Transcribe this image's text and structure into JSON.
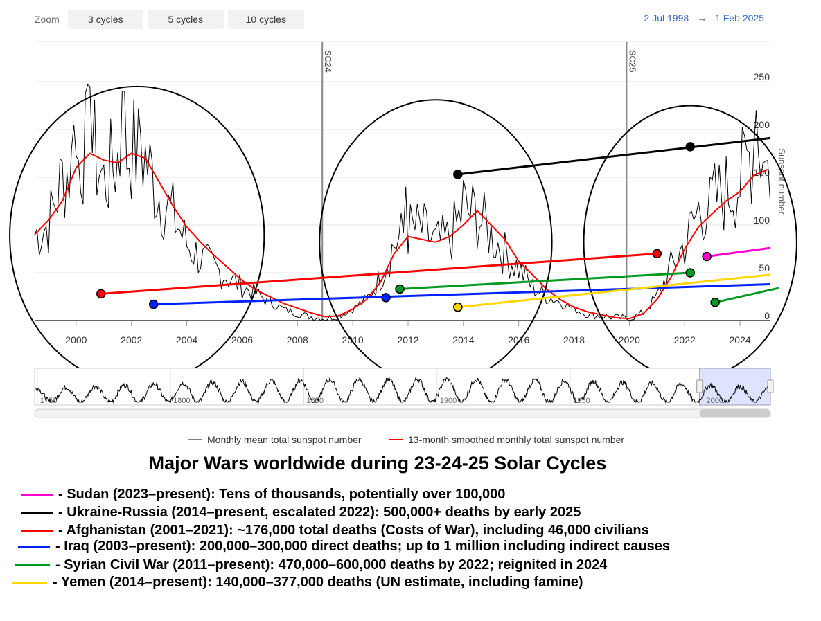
{
  "toolbar": {
    "zoom_label": "Zoom",
    "buttons": [
      "3 cycles",
      "5 cycles",
      "10 cycles"
    ],
    "range_start": "2 Jul 1998",
    "range_arrow": "→",
    "range_end": "1 Feb 2025"
  },
  "colors": {
    "monthly": "#000000",
    "smoothed": "#ff0000",
    "sudan": "#ff00cc",
    "ukraine": "#000000",
    "afghanistan": "#ff0000",
    "iraq": "#0022ff",
    "syria": "#009922",
    "yemen": "#ffd700",
    "navigator_selection": "#d6dcff",
    "range_text": "#3366cc"
  },
  "chart_data": {
    "type": "line",
    "xlim": [
      1998.5,
      2025.1
    ],
    "ylim": [
      0,
      250
    ],
    "ylabel": "Sunspot number",
    "x_ticks": [
      2000,
      2002,
      2004,
      2006,
      2008,
      2010,
      2012,
      2014,
      2016,
      2018,
      2020,
      2022,
      2024
    ],
    "y_ticks": [
      0,
      50,
      100,
      150,
      200,
      250
    ],
    "plot_lines": [
      {
        "label": "SC24",
        "x": 2008.9
      },
      {
        "label": "SC25",
        "x": 2019.9
      }
    ],
    "smoothed_series": {
      "name": "13-month smoothed monthly total sunspot number",
      "points": [
        [
          1998.5,
          90
        ],
        [
          1999.0,
          105
        ],
        [
          1999.5,
          125
        ],
        [
          2000.0,
          160
        ],
        [
          2000.5,
          175
        ],
        [
          2001.0,
          168
        ],
        [
          2001.5,
          165
        ],
        [
          2002.0,
          175
        ],
        [
          2002.5,
          170
        ],
        [
          2003.0,
          145
        ],
        [
          2003.5,
          120
        ],
        [
          2004.0,
          98
        ],
        [
          2004.5,
          82
        ],
        [
          2005.0,
          68
        ],
        [
          2005.5,
          55
        ],
        [
          2006.0,
          42
        ],
        [
          2006.5,
          32
        ],
        [
          2007.0,
          25
        ],
        [
          2007.5,
          18
        ],
        [
          2008.0,
          13
        ],
        [
          2008.5,
          8
        ],
        [
          2009.0,
          4
        ],
        [
          2009.5,
          5
        ],
        [
          2010.0,
          12
        ],
        [
          2010.5,
          22
        ],
        [
          2011.0,
          40
        ],
        [
          2011.5,
          70
        ],
        [
          2012.0,
          88
        ],
        [
          2012.5,
          85
        ],
        [
          2013.0,
          82
        ],
        [
          2013.5,
          88
        ],
        [
          2014.0,
          100
        ],
        [
          2014.5,
          115
        ],
        [
          2015.0,
          100
        ],
        [
          2015.5,
          85
        ],
        [
          2016.0,
          62
        ],
        [
          2016.5,
          48
        ],
        [
          2017.0,
          33
        ],
        [
          2017.5,
          22
        ],
        [
          2018.0,
          14
        ],
        [
          2018.5,
          9
        ],
        [
          2019.0,
          6
        ],
        [
          2019.5,
          3
        ],
        [
          2020.0,
          2
        ],
        [
          2020.5,
          7
        ],
        [
          2021.0,
          22
        ],
        [
          2021.5,
          45
        ],
        [
          2022.0,
          75
        ],
        [
          2022.5,
          98
        ],
        [
          2023.0,
          112
        ],
        [
          2023.5,
          125
        ],
        [
          2024.0,
          135
        ],
        [
          2024.5,
          152
        ],
        [
          2025.0,
          158
        ]
      ]
    },
    "monthly_series": {
      "name": "Monthly mean total sunspot number",
      "anchors": [
        [
          1998.5,
          90
        ],
        [
          1999.0,
          100
        ],
        [
          1999.5,
          150
        ],
        [
          2000.0,
          165
        ],
        [
          2000.5,
          190
        ],
        [
          2001.0,
          145
        ],
        [
          2001.5,
          170
        ],
        [
          2002.0,
          180
        ],
        [
          2002.5,
          170
        ],
        [
          2003.0,
          130
        ],
        [
          2003.5,
          110
        ],
        [
          2004.0,
          80
        ],
        [
          2004.5,
          65
        ],
        [
          2005.0,
          55
        ],
        [
          2005.5,
          45
        ],
        [
          2006.0,
          35
        ],
        [
          2006.5,
          28
        ],
        [
          2007.0,
          20
        ],
        [
          2007.5,
          12
        ],
        [
          2008.0,
          7
        ],
        [
          2008.5,
          4
        ],
        [
          2009.0,
          2
        ],
        [
          2009.5,
          5
        ],
        [
          2010.0,
          12
        ],
        [
          2010.5,
          22
        ],
        [
          2011.0,
          45
        ],
        [
          2011.5,
          80
        ],
        [
          2012.0,
          95
        ],
        [
          2012.5,
          95
        ],
        [
          2013.0,
          80
        ],
        [
          2013.5,
          85
        ],
        [
          2014.0,
          115
        ],
        [
          2014.5,
          110
        ],
        [
          2015.0,
          90
        ],
        [
          2015.5,
          70
        ],
        [
          2016.0,
          55
        ],
        [
          2016.5,
          35
        ],
        [
          2017.0,
          25
        ],
        [
          2017.5,
          20
        ],
        [
          2018.0,
          12
        ],
        [
          2018.5,
          6
        ],
        [
          2019.0,
          5
        ],
        [
          2019.5,
          3
        ],
        [
          2020.0,
          2
        ],
        [
          2020.5,
          8
        ],
        [
          2021.0,
          25
        ],
        [
          2021.5,
          55
        ],
        [
          2022.0,
          80
        ],
        [
          2022.5,
          115
        ],
        [
          2023.0,
          125
        ],
        [
          2023.5,
          135
        ],
        [
          2024.0,
          145
        ],
        [
          2024.5,
          185
        ],
        [
          2025.0,
          160
        ]
      ],
      "peaks": [
        [
          1999.9,
          205
        ],
        [
          2000.5,
          245
        ],
        [
          2001.7,
          240
        ],
        [
          2002.3,
          195
        ],
        [
          2011.9,
          140
        ],
        [
          2014.0,
          147
        ],
        [
          2022.9,
          150
        ],
        [
          2024.6,
          220
        ],
        [
          2024.85,
          165
        ]
      ]
    },
    "circles": [
      {
        "cx": 2002.2,
        "cy": 89,
        "rx": 4.6,
        "ry": 156
      },
      {
        "cx": 2013.0,
        "cy": 82,
        "rx": 4.2,
        "ry": 149
      },
      {
        "cx": 2022.2,
        "cy": 82,
        "rx": 3.85,
        "ry": 143
      }
    ],
    "war_lines": [
      {
        "name": "ukraine",
        "start": [
          2013.8,
          153
        ],
        "end": [
          2025.1,
          191
        ],
        "markers": [
          [
            2013.8,
            153
          ],
          [
            2022.2,
            182
          ]
        ]
      },
      {
        "name": "afghanistan",
        "start": [
          2000.9,
          28
        ],
        "end": [
          2021.0,
          70
        ],
        "markers": [
          [
            2000.9,
            28
          ],
          [
            2021.0,
            70
          ]
        ]
      },
      {
        "name": "iraq",
        "start": [
          2002.8,
          17
        ],
        "end": [
          2025.1,
          38
        ],
        "markers": [
          [
            2002.8,
            17
          ],
          [
            2011.2,
            24
          ]
        ]
      },
      {
        "name": "syria",
        "start": [
          2011.7,
          33
        ],
        "end": [
          2022.2,
          50
        ],
        "markers": [
          [
            2011.7,
            33
          ],
          [
            2022.2,
            50
          ]
        ]
      },
      {
        "name": "yemen",
        "start": [
          2013.8,
          14
        ],
        "end": [
          2025.1,
          48
        ],
        "markers": [
          [
            2013.8,
            14
          ]
        ]
      },
      {
        "name": "sudan",
        "start": [
          2022.8,
          67
        ],
        "end": [
          2025.1,
          76
        ],
        "markers": [
          [
            2022.8,
            67
          ]
        ]
      },
      {
        "name": "syria_reignited",
        "color_key": "syria",
        "start": [
          2023.1,
          19
        ],
        "end": [
          2025.4,
          34
        ],
        "markers": [
          [
            2023.1,
            19
          ]
        ]
      }
    ],
    "navigator": {
      "x_ticks": [
        1750,
        1800,
        1850,
        1900,
        1950,
        2000
      ],
      "xlim": [
        1749,
        2025.1
      ],
      "selected": [
        1998.5,
        2025.1
      ]
    }
  },
  "legend": {
    "monthly_label": "Monthly mean total sunspot number",
    "smoothed_label": "13-month smoothed monthly total sunspot number"
  },
  "title": "Major Wars worldwide during 23-24-25 Solar Cycles",
  "wars": [
    {
      "color": "#ff00cc",
      "text": "- Sudan (2023–present): Tens of thousands, potentially over 100,000"
    },
    {
      "color": "#000000",
      "text": "- Ukraine-Russia (2014–present, escalated 2022): 500,000+ deaths by early 2025"
    },
    {
      "color": "#ff0000",
      "text": "- Afghanistan (2001–2021): ~176,000 total deaths (Costs of War), including 46,000 civilians"
    },
    {
      "color": "#0022ff",
      "text": "- Iraq (2003–present): 200,000–300,000 direct deaths; up to 1 million including indirect causes"
    },
    {
      "color": "#009922",
      "text": "- Syrian Civil War (2011–present): 470,000–600,000 deaths by 2022; reignited in 2024"
    },
    {
      "color": "#ffd700",
      "text": "- Yemen (2014–present): 140,000–377,000 deaths (UN estimate, including famine)"
    }
  ]
}
